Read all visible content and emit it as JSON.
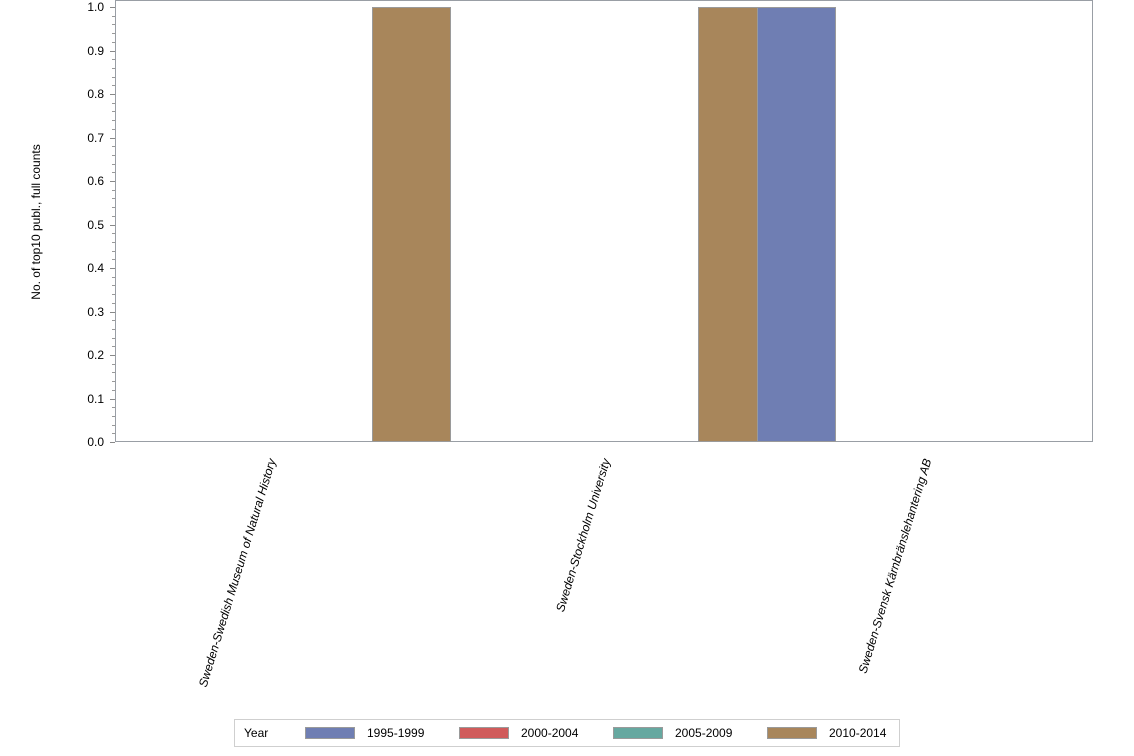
{
  "chart_data": {
    "type": "bar",
    "title": "",
    "xlabel": "",
    "ylabel": "No. of top10 publ., full counts",
    "ylim": [
      0,
      1.0
    ],
    "yticks": [
      "0.0",
      "0.1",
      "0.2",
      "0.3",
      "0.4",
      "0.5",
      "0.6",
      "0.7",
      "0.8",
      "0.9",
      "1.0"
    ],
    "categories": [
      "Sweden-Swedish Museum of Natural History",
      "Sweden-Stockholm University",
      "Sweden-Svensk Kärnbränslehantering AB"
    ],
    "series": [
      {
        "name": "1995-1999",
        "color": "#6f7eb3",
        "values": [
          0,
          0,
          1
        ]
      },
      {
        "name": "2000-2004",
        "color": "#d05b5b",
        "values": [
          0,
          0,
          0
        ]
      },
      {
        "name": "2005-2009",
        "color": "#66a8a0",
        "values": [
          0,
          0,
          0
        ]
      },
      {
        "name": "2010-2014",
        "color": "#a8865b",
        "values": [
          1,
          1,
          0
        ]
      }
    ],
    "legend": {
      "title": "Year",
      "position": "bottom"
    },
    "grid": false
  }
}
